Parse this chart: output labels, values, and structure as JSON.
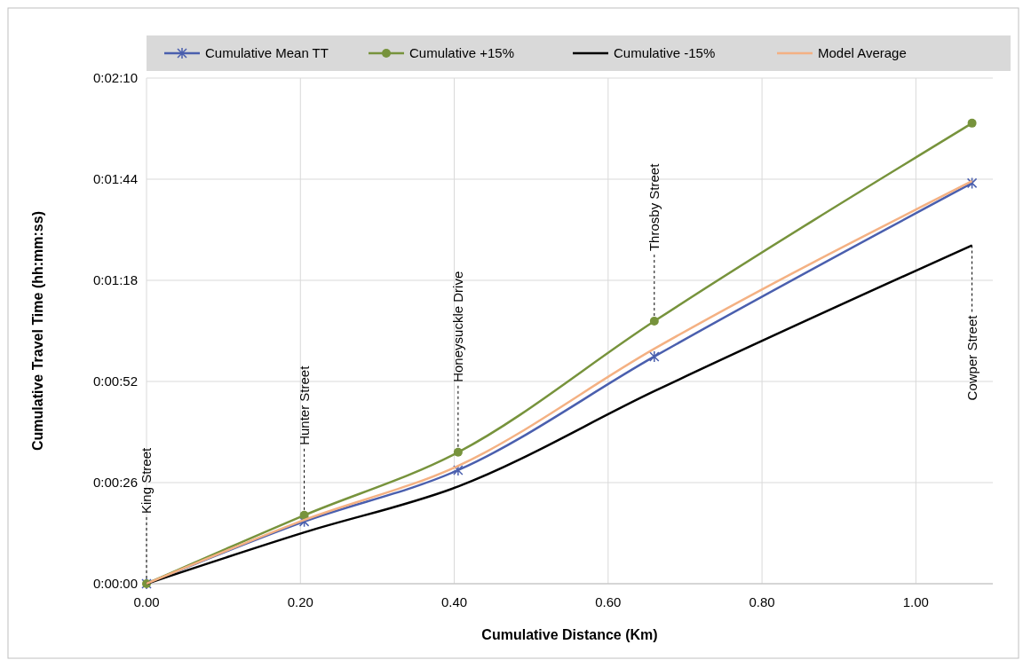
{
  "chart_data": {
    "type": "line",
    "xlabel": "Cumulative Distance (Km)",
    "ylabel": "Cumulative Travel Time  (hh:mm:ss)",
    "x": [
      0,
      0.205,
      0.405,
      0.66,
      1.073
    ],
    "series": [
      {
        "name": "Cumulative Mean TT",
        "color": "#4a5fae",
        "marker": "cross",
        "values": [
          0,
          16,
          29.2,
          58.4,
          103
        ]
      },
      {
        "name": "Cumulative +15%",
        "color": "#77933c",
        "marker": "circle",
        "values": [
          0,
          17.6,
          33.8,
          67.5,
          118.4
        ]
      },
      {
        "name": "Cumulative -15%",
        "color": "#000000",
        "marker": "none",
        "values": [
          0,
          13.2,
          25,
          49.5,
          87
        ]
      },
      {
        "name": "Model Average",
        "color": "#f4b183",
        "marker": "none",
        "values": [
          0,
          16.4,
          30.3,
          60.4,
          103.5
        ]
      }
    ],
    "xlim": [
      0,
      1.1
    ],
    "xticks": [
      {
        "value": 0,
        "label": "0.00"
      },
      {
        "value": 0.2,
        "label": "0.20"
      },
      {
        "value": 0.4,
        "label": "0.40"
      },
      {
        "value": 0.6,
        "label": "0.60"
      },
      {
        "value": 0.8,
        "label": "0.80"
      },
      {
        "value": 1,
        "label": "1.00"
      }
    ],
    "ylim": [
      0,
      130
    ],
    "yticks": [
      {
        "value": 0,
        "label": "0:00:00"
      },
      {
        "value": 26,
        "label": "0:00:26"
      },
      {
        "value": 52,
        "label": "0:00:52"
      },
      {
        "value": 78,
        "label": "0:01:18"
      },
      {
        "value": 104,
        "label": "0:01:44"
      },
      {
        "value": 130,
        "label": "0:02:10"
      }
    ],
    "grid": true,
    "legend": "top",
    "line_style": "solid",
    "annotations": [
      {
        "text": "King Street",
        "x": 0,
        "y": 0
      },
      {
        "text": "Hunter Street",
        "x": 0.205,
        "y": 17.6
      },
      {
        "text": "Honeysuckle Drive",
        "x": 0.405,
        "y": 33.8
      },
      {
        "text": "Throsby Street",
        "x": 0.66,
        "y": 67.5
      },
      {
        "text": "Cowper Street",
        "x": 1.073,
        "y": 87
      }
    ]
  }
}
